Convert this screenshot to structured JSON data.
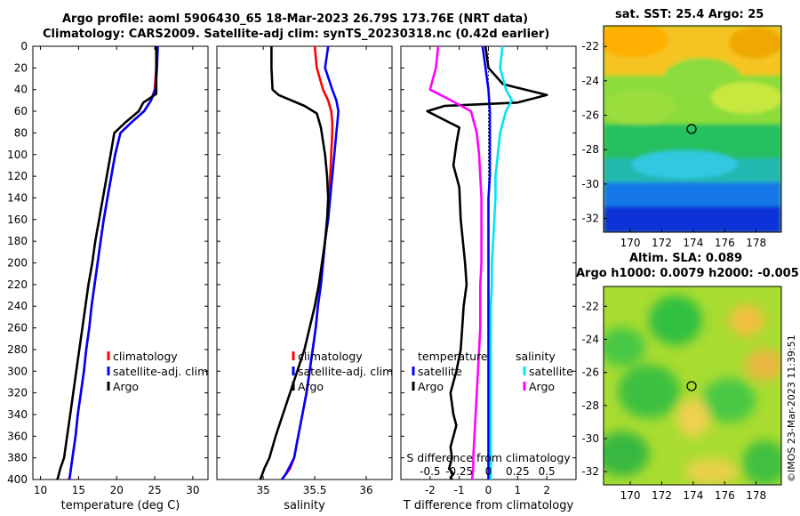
{
  "titles": {
    "line1": "Argo profile: aoml 5906430_65 18-Mar-2023 26.79S 173.76E (NRT data)",
    "line2": "Climatology: CARS2009. Satellite-adj clim: synTS_20230318.nc (0.42d earlier)",
    "sst": "sat. SST: 25.4 Argo: 25",
    "sla1": "Altim. SLA: 0.089",
    "sla2": "Argo h1000: 0.0079 h2000: -0.005"
  },
  "credit": "©IMOS 23-Mar-2023 11:39:51",
  "colors": {
    "clim": "#ff0000",
    "sat": "#0000ff",
    "argo": "#000000",
    "sal_sat": "#00e5ee",
    "sal_argo": "#ff00ff"
  },
  "chart_data": [
    {
      "type": "line",
      "name": "temperature",
      "xlabel": "temperature (deg C)",
      "xlim": [
        9,
        32
      ],
      "ylim": [
        400,
        0
      ],
      "xticks": [
        10,
        15,
        20,
        25,
        30
      ],
      "yticks": [
        0,
        20,
        40,
        60,
        80,
        100,
        120,
        140,
        160,
        180,
        200,
        220,
        240,
        260,
        280,
        300,
        320,
        340,
        360,
        380,
        400
      ],
      "legend": [
        "climatology",
        "satellite-adj. clim",
        "Argo"
      ],
      "series": [
        {
          "name": "climatology",
          "color": "#ff0000",
          "x": [
            25.3,
            25.2,
            25.0,
            24.5,
            23.6,
            22.0,
            20.5,
            19.8,
            19.3,
            18.8,
            18.3,
            17.9,
            17.5,
            17.1,
            16.7,
            16.4,
            16.0,
            15.7,
            15.3,
            14.9,
            14.6,
            14.2,
            13.8,
            13.5
          ],
          "y": [
            0,
            20,
            40,
            50,
            60,
            70,
            80,
            100,
            120,
            140,
            160,
            180,
            200,
            220,
            240,
            260,
            280,
            300,
            320,
            340,
            360,
            380,
            400,
            400
          ]
        },
        {
          "name": "satellite-adj. clim",
          "color": "#0000ff",
          "x": [
            25.4,
            25.3,
            25.1,
            24.5,
            23.6,
            22.0,
            20.5,
            19.8,
            19.3,
            18.8,
            18.3,
            17.9,
            17.5,
            17.1,
            16.7,
            16.4,
            16.0,
            15.7,
            15.3,
            14.9,
            14.6,
            14.2,
            13.8
          ],
          "y": [
            0,
            20,
            40,
            50,
            60,
            70,
            80,
            100,
            120,
            140,
            160,
            180,
            200,
            220,
            240,
            260,
            280,
            300,
            320,
            340,
            360,
            380,
            400
          ]
        },
        {
          "name": "Argo",
          "color": "#000000",
          "x": [
            25.2,
            25.2,
            25.2,
            23.5,
            22.9,
            21.2,
            19.7,
            19.2,
            18.7,
            18.2,
            17.7,
            17.2,
            16.8,
            16.3,
            15.9,
            15.5,
            15.1,
            14.7,
            14.3,
            13.9,
            13.5,
            13.1,
            12.6,
            12.3,
            12.2
          ],
          "y": [
            0,
            20,
            44,
            52,
            60,
            70,
            80,
            100,
            120,
            140,
            160,
            180,
            200,
            220,
            240,
            260,
            280,
            300,
            320,
            340,
            360,
            380,
            390,
            398,
            400
          ]
        }
      ]
    },
    {
      "type": "line",
      "name": "salinity",
      "xlabel": "salinity",
      "xlim": [
        34.55,
        36.25
      ],
      "ylim": [
        400,
        0
      ],
      "xticks": [
        35,
        35.5,
        36
      ],
      "legend": [
        "climatology",
        "satellite-adj. clim",
        "Argo"
      ],
      "series": [
        {
          "name": "climatology",
          "color": "#ff0000",
          "x": [
            35.5,
            35.52,
            35.58,
            35.63,
            35.66,
            35.67,
            35.67,
            35.66,
            35.65,
            35.64,
            35.62,
            35.6,
            35.58,
            35.56,
            35.53,
            35.51,
            35.48,
            35.45,
            35.42,
            35.38,
            35.34,
            35.3,
            35.26,
            35.22,
            35.18
          ],
          "y": [
            0,
            20,
            40,
            50,
            60,
            70,
            80,
            100,
            120,
            140,
            160,
            180,
            200,
            220,
            240,
            260,
            280,
            300,
            320,
            340,
            360,
            380,
            390,
            395,
            400
          ]
        },
        {
          "name": "satellite-adj. clim",
          "color": "#0000ff",
          "x": [
            35.63,
            35.6,
            35.67,
            35.71,
            35.73,
            35.72,
            35.71,
            35.69,
            35.67,
            35.65,
            35.63,
            35.6,
            35.58,
            35.56,
            35.53,
            35.51,
            35.48,
            35.45,
            35.42,
            35.38,
            35.34,
            35.3,
            35.22,
            35.18
          ],
          "y": [
            0,
            20,
            40,
            50,
            60,
            70,
            80,
            100,
            120,
            140,
            160,
            180,
            200,
            220,
            240,
            260,
            280,
            300,
            320,
            340,
            360,
            380,
            395,
            400
          ]
        },
        {
          "name": "Argo",
          "color": "#000000",
          "x": [
            35.08,
            35.08,
            35.09,
            35.15,
            35.4,
            35.52,
            35.56,
            35.6,
            35.62,
            35.63,
            35.62,
            35.6,
            35.57,
            35.54,
            35.5,
            35.45,
            35.4,
            35.33,
            35.26,
            35.19,
            35.12,
            35.06,
            35.01,
            34.98,
            34.97
          ],
          "y": [
            0,
            20,
            40,
            45,
            55,
            62,
            75,
            100,
            120,
            140,
            160,
            180,
            200,
            220,
            240,
            260,
            280,
            300,
            320,
            340,
            360,
            380,
            390,
            398,
            400
          ]
        }
      ]
    },
    {
      "type": "line",
      "name": "difference",
      "xlabel": "T difference from climatology",
      "top_axis_label": "S difference from climatology",
      "xlim": [
        -3,
        3
      ],
      "ylim": [
        400,
        0
      ],
      "xticks": [
        -2,
        -1,
        0,
        1,
        2
      ],
      "top_ticks": [
        "-0.5",
        "-0.25",
        "0",
        "0.25",
        "0.5"
      ],
      "top_tick_values": [
        -0.5,
        -0.25,
        0,
        0.25,
        0.5
      ],
      "legend_temperature": {
        "title": "temperature",
        "items": [
          "satellite",
          "Argo"
        ]
      },
      "legend_salinity": {
        "title": "salinity",
        "items": [
          "satellite",
          "Argo"
        ]
      },
      "series": [
        {
          "name": "T satellite",
          "color": "#0000ff",
          "x": [
            -0.2,
            -0.1,
            0.0,
            0.05,
            0.05,
            0.05,
            0.05,
            0.0,
            0.0,
            0.0,
            0.0,
            0.0,
            0.0,
            0.0,
            0.0,
            0.0,
            0.0,
            0.0,
            0.0,
            0.0,
            0.0,
            0.0,
            0.0
          ],
          "y": [
            0,
            20,
            40,
            60,
            80,
            100,
            120,
            140,
            160,
            180,
            200,
            220,
            240,
            260,
            280,
            300,
            320,
            340,
            360,
            380,
            390,
            395,
            400
          ]
        },
        {
          "name": "T Argo",
          "color": "#000000",
          "x": [
            -0.1,
            0.0,
            0.5,
            2.0,
            1.0,
            -1.5,
            -2.1,
            -1.0,
            -1.1,
            -1.2,
            -1.0,
            -0.95,
            -0.8,
            -0.75,
            -0.85,
            -0.9,
            -0.95,
            -1.1,
            -1.3,
            -1.2,
            -1.1,
            -1.2,
            -1.3,
            -1.25,
            -1.35,
            -1.2,
            -1.3,
            -1.25
          ],
          "y": [
            0,
            20,
            35,
            45,
            52,
            55,
            60,
            75,
            90,
            110,
            130,
            160,
            200,
            220,
            240,
            260,
            280,
            300,
            320,
            340,
            350,
            360,
            370,
            380,
            390,
            395,
            398,
            400
          ]
        },
        {
          "name": "S satellite",
          "color": "#00e5ee",
          "x": [
            0.12,
            0.1,
            0.15,
            0.2,
            0.15,
            0.1,
            0.08,
            0.06,
            0.06,
            0.05,
            0.04,
            0.03,
            0.03,
            0.02,
            0.02,
            0.02,
            0.02,
            0.02,
            0.02,
            0.02,
            0.02,
            0.02
          ],
          "y": [
            0,
            20,
            40,
            50,
            60,
            80,
            100,
            120,
            140,
            160,
            180,
            200,
            220,
            240,
            260,
            280,
            300,
            320,
            340,
            360,
            380,
            400
          ]
        },
        {
          "name": "S Argo",
          "color": "#ff00ff",
          "x": [
            -0.43,
            -0.45,
            -0.5,
            -0.32,
            -0.15,
            -0.1,
            -0.08,
            -0.07,
            -0.06,
            -0.06,
            -0.06,
            -0.06,
            -0.07,
            -0.07,
            -0.07,
            -0.08,
            -0.09,
            -0.1,
            -0.11,
            -0.12,
            -0.13,
            -0.13,
            -0.14
          ],
          "y": [
            0,
            20,
            40,
            50,
            60,
            80,
            100,
            120,
            140,
            160,
            180,
            200,
            220,
            240,
            260,
            280,
            300,
            320,
            340,
            360,
            380,
            390,
            400
          ]
        }
      ]
    },
    {
      "type": "heatmap",
      "name": "sat-sst-map",
      "title": "sat. SST: 25.4 Argo: 25",
      "xlim": [
        168.3,
        179.6
      ],
      "ylim": [
        -32.8,
        -20.8
      ],
      "xticks": [
        170,
        172,
        174,
        176,
        178
      ],
      "yticks": [
        -22,
        -24,
        -26,
        -28,
        -30,
        -32
      ],
      "marker": {
        "lon": 173.76,
        "lat": -26.79
      }
    },
    {
      "type": "heatmap",
      "name": "sla-map",
      "title": "Altim. SLA: 0.089",
      "xlim": [
        168.3,
        179.6
      ],
      "ylim": [
        -32.8,
        -20.8
      ],
      "xticks": [
        170,
        172,
        174,
        176,
        178
      ],
      "yticks": [
        -22,
        -24,
        -26,
        -28,
        -30,
        -32
      ],
      "marker": {
        "lon": 173.76,
        "lat": -26.79
      }
    }
  ]
}
